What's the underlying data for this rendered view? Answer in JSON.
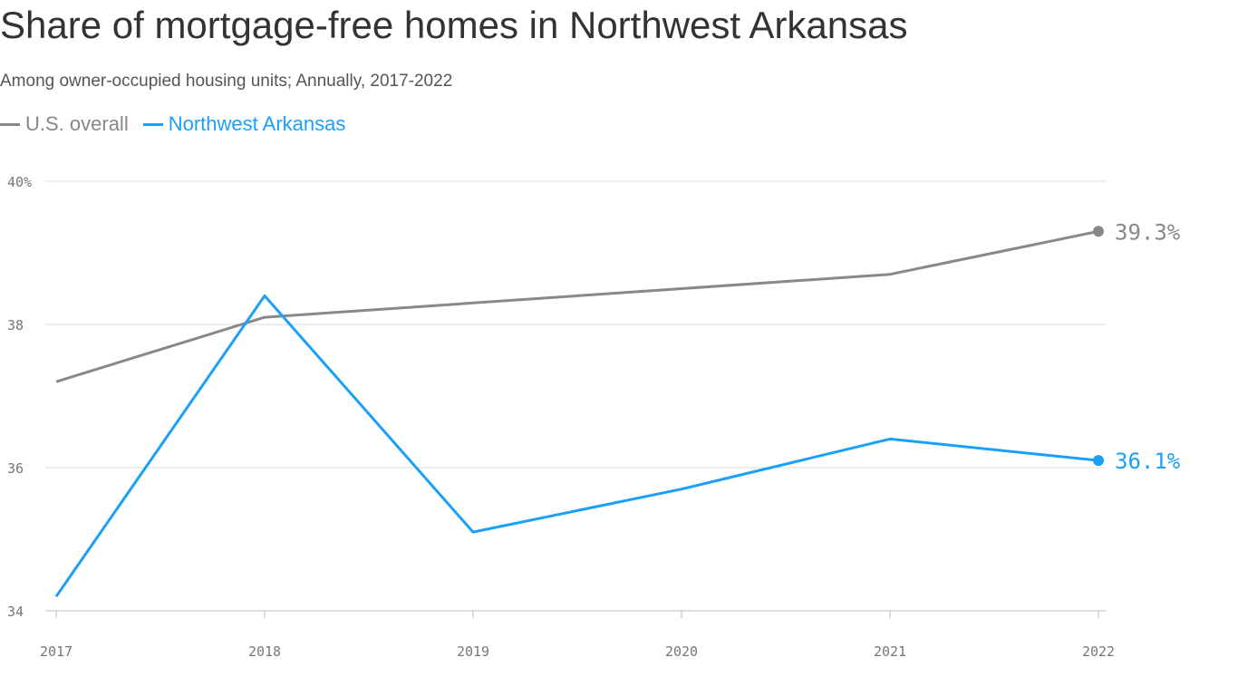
{
  "chart_data": {
    "type": "line",
    "title": "Share of mortgage-free homes in Northwest Arkansas",
    "subtitle": "Among owner-occupied housing units; Annually, 2017-2022",
    "x": [
      "2017",
      "2018",
      "2019",
      "2020",
      "2021",
      "2022"
    ],
    "ylim": [
      34,
      40
    ],
    "yticks": [
      "34",
      "36",
      "38",
      "40%"
    ],
    "ytick_values": [
      34,
      36,
      38,
      40
    ],
    "grid": true,
    "legend_placement": "top-left",
    "series": [
      {
        "name": "U.S. overall",
        "color": "#888888",
        "values": [
          37.2,
          38.1,
          38.3,
          38.5,
          38.7,
          39.3
        ],
        "end_label": "39.3%"
      },
      {
        "name": "Northwest Arkansas",
        "color": "#1a9ffa",
        "values": [
          34.2,
          38.4,
          35.1,
          35.7,
          36.4,
          36.1
        ],
        "end_label": "36.1%"
      }
    ]
  }
}
